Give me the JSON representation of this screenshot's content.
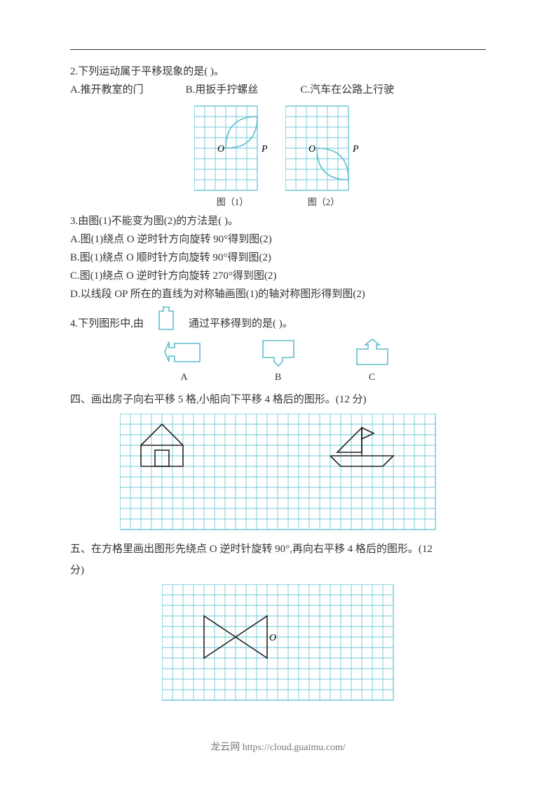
{
  "colors": {
    "text": "#333333",
    "grid": "#6fc9d9",
    "grid_light": "#8fd4df",
    "shape_stroke": "#5bbecd",
    "black": "#222222",
    "footer": "#777777",
    "bg": "#ffffff"
  },
  "fonts": {
    "body_size": 15,
    "caption_size": 13,
    "footer_size": 14
  },
  "q2": {
    "stem": "2.下列运动属于平移现象的是(        )。",
    "opts": {
      "A": "A.推开教室的门",
      "B": "B.用扳手拧螺丝",
      "C": "C.汽车在公路上行驶"
    }
  },
  "fig12": {
    "grid_cell": 15,
    "cols": 6,
    "rows": 8,
    "O": "O",
    "P": "P",
    "cap1": "图（1）",
    "cap2": "图（2）",
    "leaf_color": "#5bbecd"
  },
  "q3": {
    "stem": "3.由图(1)不能变为图(2)的方法是(        )。",
    "A": "A.图(1)绕点 O 逆时针方向旋转 90°得到图(2)",
    "B": "B.图(1)绕点 O 顺时针方向旋转 90°得到图(2)",
    "C": "C.图(1)绕点 O 逆时针方向旋转 270°得到图(2)",
    "D": "D.以线段 OP 所在的直线为对称轴画图(1)的轴对称图形得到图(2)"
  },
  "q4": {
    "pre": "4.下列图形中,由",
    "post": "通过平移得到的是(        )。",
    "labels": {
      "A": "A",
      "B": "B",
      "C": "C"
    },
    "shape_color": "#5bbecd"
  },
  "sec4": {
    "title": "四、画出房子向右平移 5 格,小船向下平移 4 格后的图形。(12 分)",
    "grid": {
      "cell": 15,
      "cols": 30,
      "rows": 11
    },
    "house_color": "#222222",
    "boat_color": "#222222"
  },
  "sec5": {
    "title_l1": "五、在方格里画出图形先绕点 O 逆时针旋转 90°,再向右平移 4 格后的图形。(12",
    "title_l2": "分)",
    "grid": {
      "cell": 15,
      "cols": 22,
      "rows": 11
    },
    "shape_color": "#222222",
    "O": "O"
  },
  "footer": "龙云网 https://cloud.guaimu.com/"
}
